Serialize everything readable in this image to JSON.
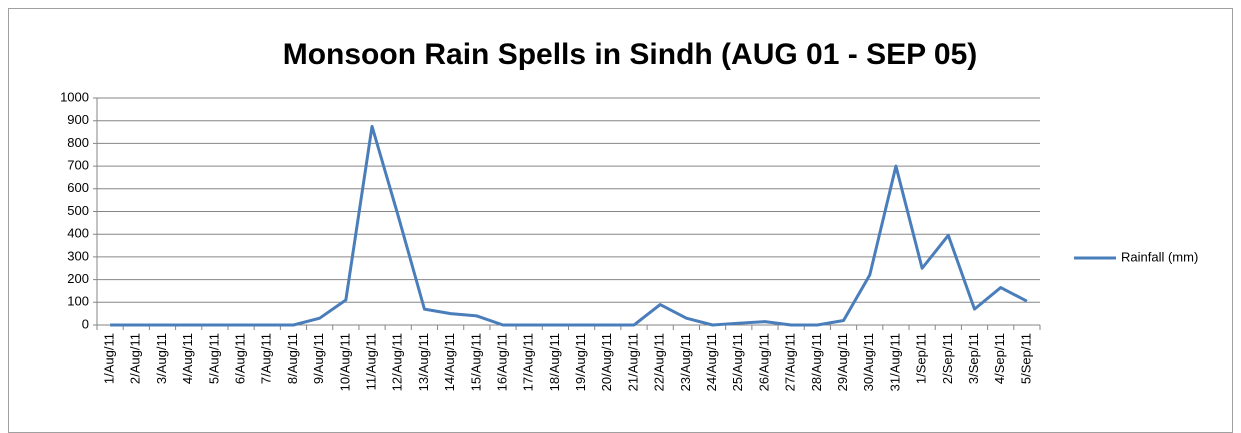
{
  "chart_data": {
    "type": "line",
    "title": "Monsoon Rain Spells in Sindh (AUG 01 - SEP 05)",
    "categories": [
      "1/Aug/11",
      "2/Aug/11",
      "3/Aug/11",
      "4/Aug/11",
      "5/Aug/11",
      "6/Aug/11",
      "7/Aug/11",
      "8/Aug/11",
      "9/Aug/11",
      "10/Aug/11",
      "11/Aug/11",
      "12/Aug/11",
      "13/Aug/11",
      "14/Aug/11",
      "15/Aug/11",
      "16/Aug/11",
      "17/Aug/11",
      "18/Aug/11",
      "19/Aug/11",
      "20/Aug/11",
      "21/Aug/11",
      "22/Aug/11",
      "23/Aug/11",
      "24/Aug/11",
      "25/Aug/11",
      "26/Aug/11",
      "27/Aug/11",
      "28/Aug/11",
      "29/Aug/11",
      "30/Aug/11",
      "31/Aug/11",
      "1/Sep/11",
      "2/Sep/11",
      "3/Sep/11",
      "4/Sep/11",
      "5/Sep/11"
    ],
    "series": [
      {
        "name": "Rainfall (mm)",
        "color": "#4a7ebb",
        "values": [
          0,
          0,
          0,
          0,
          0,
          0,
          0,
          0,
          30,
          110,
          875,
          480,
          70,
          50,
          40,
          0,
          0,
          0,
          0,
          0,
          0,
          90,
          30,
          0,
          8,
          15,
          0,
          0,
          20,
          220,
          700,
          250,
          395,
          70,
          165,
          105
        ]
      }
    ],
    "ylim": [
      0,
      1000
    ],
    "yticks": [
      0,
      100,
      200,
      300,
      400,
      500,
      600,
      700,
      800,
      900,
      1000
    ],
    "grid": true,
    "legend": "right"
  }
}
